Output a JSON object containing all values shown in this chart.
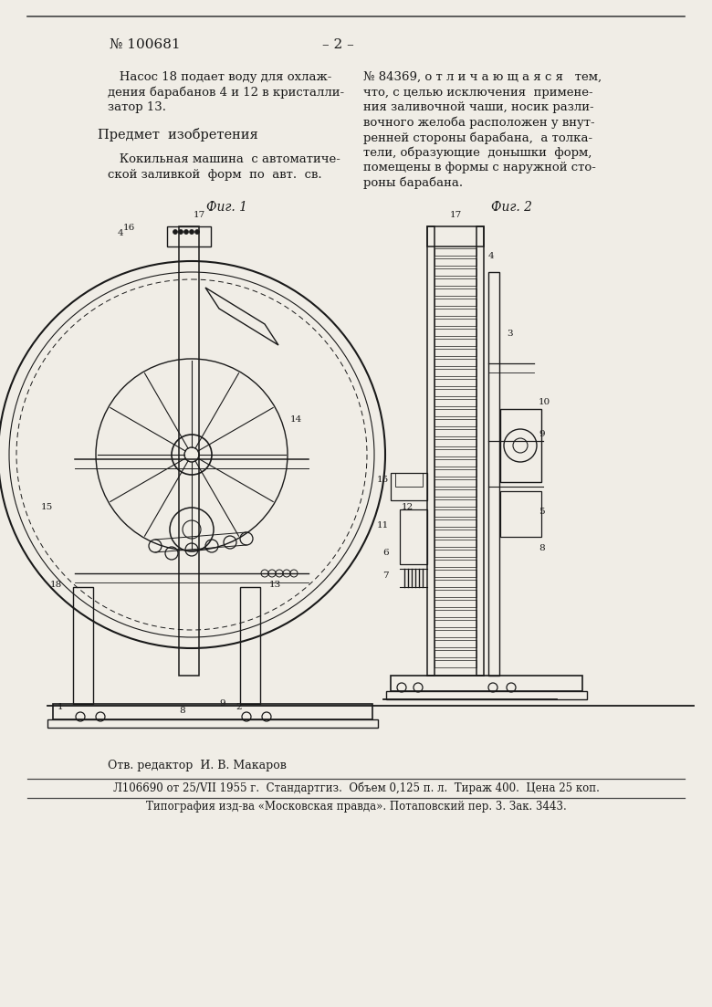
{
  "bg_color": "#f0ede6",
  "patent_number": "№ 100681",
  "page_number": "– 2 –",
  "left_col_text": [
    "   Насос 18 подает воду для охлаж-",
    "дения барабанов 4 и 12 в кристалли-",
    "затор 13."
  ],
  "subject_title": "Предмет  изобретения",
  "left_col_text2": [
    "   Кокильная машина  с автоматиче-",
    "ской заливкой  форм  по  авт.  св."
  ],
  "right_col_text": [
    "№ 84369, о т л и ч а ю щ а я с я   тем,",
    "что, с целью исключения  примене-",
    "ния заливочной чаши, носик разли-",
    "вочного желоба расположен у внут-",
    "ренней стороны барабана,  а толка-",
    "тели, образующие  донышки  форм,",
    "помещены в формы с наружной сто-",
    "роны барабана."
  ],
  "fig1_label": "Фиг. 1",
  "fig2_label": "Фиг. 2",
  "editor_line": "Отв. редактор  И. В. Макаров",
  "footer_line1": "Л106690 от 25/VII 1955 г.  Стандартгиз.  Объем 0,125 п. л.  Тираж 400.  Цена 25 коп.",
  "footer_line2": "Типография изд-ва «Московская правда». Потаповский пер. 3. Зак. 3443.",
  "text_color": "#1a1a1a",
  "line_color": "#444444"
}
